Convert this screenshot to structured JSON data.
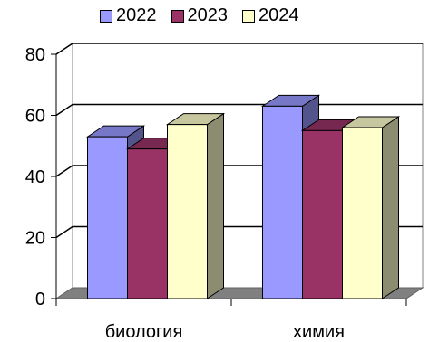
{
  "chart_data": {
    "type": "bar",
    "categories": [
      "биология",
      "химия"
    ],
    "series": [
      {
        "name": "2022",
        "values": [
          53,
          63
        ],
        "color": "#9999FF"
      },
      {
        "name": "2023",
        "values": [
          49,
          55
        ],
        "color": "#993366"
      },
      {
        "name": "2024",
        "values": [
          57,
          56
        ],
        "color": "#FFFFCC"
      }
    ],
    "ylim": [
      0,
      80
    ],
    "yticks": [
      0,
      20,
      40,
      60,
      80
    ],
    "grid": true,
    "legend_position": "top",
    "style": "3d-clustered"
  }
}
